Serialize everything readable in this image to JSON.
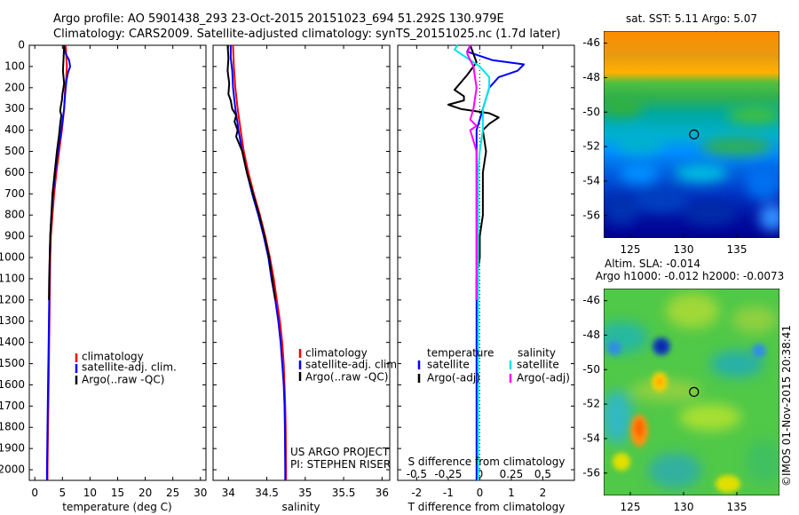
{
  "header": {
    "line1": "Argo profile: AO 5901438_293 23-Oct-2015 20151023_694 51.292S 130.979E",
    "line2": "Climatology: CARS2009. Satellite-adjusted climatology: synTS_20151025.nc (1.7d later)"
  },
  "credits": {
    "project": "US ARGO PROJECT",
    "pi": "PI: STEPHEN RISER",
    "stamp": "©IMOS 01-Nov-2015 20:38:41"
  },
  "colors": {
    "climatology": "#ff0000",
    "satellite": "#0000ff",
    "argo": "#000000",
    "satellite_salinity": "#00e5e5",
    "argo_salinity": "#ff00ff"
  },
  "chart_data": [
    {
      "type": "line",
      "panel": "temperature",
      "xlabel": "temperature (deg C)",
      "xlim": [
        -1,
        31
      ],
      "xticks": [
        "0",
        "5",
        "10",
        "15",
        "20",
        "25",
        "30"
      ],
      "xtick_values": [
        0,
        5,
        10,
        15,
        20,
        25,
        30
      ],
      "ylim": [
        0,
        2050
      ],
      "yticks": [
        "0",
        "100",
        "200",
        "300",
        "400",
        "500",
        "600",
        "700",
        "800",
        "900",
        "1000",
        "1100",
        "1200",
        "1300",
        "1400",
        "1500",
        "1600",
        "1700",
        "1800",
        "1900",
        "2000"
      ],
      "ytick_values": [
        0,
        100,
        200,
        300,
        400,
        500,
        600,
        700,
        800,
        900,
        1000,
        1100,
        1200,
        1300,
        1400,
        1500,
        1600,
        1700,
        1800,
        1900,
        2000
      ],
      "y_reversed": true,
      "legend": [
        "climatology",
        "satellite-adj. clim.",
        "Argo(..raw -QC)"
      ],
      "series": [
        {
          "name": "climatology",
          "color": "#ff0000",
          "points": [
            [
              5.6,
              0
            ],
            [
              5.7,
              50
            ],
            [
              5.8,
              100
            ],
            [
              5.7,
              150
            ],
            [
              5.5,
              200
            ],
            [
              5.3,
              300
            ],
            [
              4.9,
              400
            ],
            [
              4.4,
              500
            ],
            [
              3.9,
              600
            ],
            [
              3.5,
              700
            ],
            [
              3.2,
              800
            ],
            [
              2.9,
              900
            ],
            [
              2.8,
              1000
            ],
            [
              2.7,
              1200
            ],
            [
              2.6,
              1400
            ],
            [
              2.5,
              1600
            ],
            [
              2.4,
              1800
            ],
            [
              2.3,
              2000
            ],
            [
              2.3,
              2050
            ]
          ]
        },
        {
          "name": "satellite-adj. clim.",
          "color": "#0000ff",
          "points": [
            [
              5.3,
              0
            ],
            [
              5.6,
              40
            ],
            [
              6.2,
              70
            ],
            [
              6.4,
              100
            ],
            [
              6.0,
              130
            ],
            [
              5.7,
              170
            ],
            [
              5.5,
              230
            ],
            [
              5.3,
              300
            ],
            [
              4.8,
              400
            ],
            [
              4.2,
              500
            ],
            [
              3.7,
              600
            ],
            [
              3.3,
              700
            ],
            [
              3.0,
              800
            ],
            [
              2.8,
              900
            ],
            [
              2.7,
              1000
            ],
            [
              2.6,
              1200
            ],
            [
              2.5,
              1400
            ],
            [
              2.4,
              1600
            ],
            [
              2.3,
              1800
            ],
            [
              2.2,
              2000
            ],
            [
              2.2,
              2050
            ]
          ]
        },
        {
          "name": "Argo(..raw -QC)",
          "color": "#000000",
          "points": [
            [
              5.3,
              0
            ],
            [
              5.2,
              60
            ],
            [
              5.1,
              120
            ],
            [
              5.3,
              180
            ],
            [
              5.0,
              230
            ],
            [
              4.9,
              260
            ],
            [
              4.7,
              290
            ],
            [
              4.6,
              310
            ],
            [
              4.8,
              330
            ],
            [
              4.6,
              370
            ],
            [
              4.4,
              420
            ],
            [
              4.0,
              500
            ],
            [
              3.6,
              600
            ],
            [
              3.2,
              700
            ],
            [
              3.0,
              800
            ],
            [
              2.8,
              900
            ],
            [
              2.7,
              1000
            ],
            [
              2.6,
              1100
            ],
            [
              2.55,
              1200
            ]
          ]
        }
      ]
    },
    {
      "type": "line",
      "panel": "salinity",
      "xlabel": "salinity",
      "xlim": [
        33.8,
        36.1
      ],
      "xticks": [
        "34",
        "34.5",
        "35",
        "35.5",
        "36"
      ],
      "xtick_values": [
        34,
        34.5,
        35,
        35.5,
        36
      ],
      "ylim": [
        0,
        2050
      ],
      "y_reversed": true,
      "legend": [
        "climatology",
        "satellite-adj. clim.",
        "Argo(..raw -QC)"
      ],
      "series": [
        {
          "name": "climatology",
          "color": "#ff0000",
          "points": [
            [
              34.06,
              0
            ],
            [
              34.07,
              100
            ],
            [
              34.09,
              200
            ],
            [
              34.12,
              300
            ],
            [
              34.16,
              400
            ],
            [
              34.2,
              500
            ],
            [
              34.26,
              600
            ],
            [
              34.33,
              700
            ],
            [
              34.41,
              800
            ],
            [
              34.48,
              900
            ],
            [
              34.54,
              1000
            ],
            [
              34.59,
              1100
            ],
            [
              34.63,
              1200
            ],
            [
              34.67,
              1300
            ],
            [
              34.7,
              1400
            ],
            [
              34.72,
              1500
            ],
            [
              34.73,
              1600
            ],
            [
              34.74,
              1700
            ],
            [
              34.745,
              1800
            ],
            [
              34.75,
              2000
            ],
            [
              34.75,
              2050
            ]
          ]
        },
        {
          "name": "satellite-adj. clim.",
          "color": "#0000ff",
          "points": [
            [
              34.03,
              0
            ],
            [
              34.03,
              60
            ],
            [
              34.05,
              120
            ],
            [
              34.06,
              200
            ],
            [
              34.09,
              300
            ],
            [
              34.12,
              370
            ],
            [
              34.13,
              400
            ],
            [
              34.18,
              500
            ],
            [
              34.24,
              600
            ],
            [
              34.31,
              700
            ],
            [
              34.39,
              800
            ],
            [
              34.46,
              900
            ],
            [
              34.52,
              1000
            ],
            [
              34.56,
              1100
            ],
            [
              34.61,
              1200
            ],
            [
              34.65,
              1300
            ],
            [
              34.68,
              1400
            ],
            [
              34.7,
              1500
            ],
            [
              34.72,
              1600
            ],
            [
              34.73,
              1700
            ],
            [
              34.735,
              1800
            ],
            [
              34.74,
              2000
            ],
            [
              34.74,
              2050
            ]
          ]
        },
        {
          "name": "Argo(..raw -QC)",
          "color": "#000000",
          "points": [
            [
              33.99,
              0
            ],
            [
              34.0,
              60
            ],
            [
              33.99,
              120
            ],
            [
              34.01,
              180
            ],
            [
              34.0,
              230
            ],
            [
              34.03,
              260
            ],
            [
              34.05,
              300
            ],
            [
              34.1,
              330
            ],
            [
              34.08,
              360
            ],
            [
              34.12,
              400
            ],
            [
              34.1,
              430
            ],
            [
              34.18,
              500
            ],
            [
              34.24,
              600
            ],
            [
              34.32,
              700
            ],
            [
              34.4,
              800
            ],
            [
              34.47,
              900
            ],
            [
              34.53,
              1000
            ],
            [
              34.57,
              1100
            ],
            [
              34.61,
              1200
            ]
          ]
        }
      ]
    },
    {
      "type": "line",
      "panel": "difference",
      "xlabel": "T difference from climatology",
      "xlabel_top": "S difference from climatology",
      "xlim": [
        -2.6,
        3.0
      ],
      "xticks": [
        "-2",
        "-1",
        "0",
        "1",
        "2"
      ],
      "xtick_values": [
        -2,
        -1,
        0,
        1,
        2
      ],
      "s_xticks": [
        "-0.5",
        "-0.25",
        "0",
        "0.25",
        "0.5"
      ],
      "s_xtick_values": [
        -0.5,
        -0.25,
        0,
        0.25,
        0.5
      ],
      "ylim": [
        0,
        2050
      ],
      "y_reversed": true,
      "legend": {
        "temperature_title": "temperature",
        "salinity_title": "salinity",
        "satellite": "satellite",
        "argo": "Argo(-adj)"
      },
      "series": [
        {
          "name": "temperature satellite",
          "color": "#0000ff",
          "points": [
            [
              -0.3,
              0
            ],
            [
              -0.4,
              30
            ],
            [
              0.4,
              70
            ],
            [
              1.4,
              90
            ],
            [
              1.2,
              120
            ],
            [
              0.6,
              150
            ],
            [
              0.3,
              200
            ],
            [
              0.1,
              300
            ],
            [
              -0.1,
              400
            ],
            [
              -0.1,
              500
            ],
            [
              -0.1,
              600
            ],
            [
              -0.1,
              800
            ],
            [
              -0.1,
              1000
            ],
            [
              -0.1,
              1500
            ],
            [
              -0.1,
              2000
            ],
            [
              -0.1,
              2050
            ]
          ]
        },
        {
          "name": "temperature Argo(-adj)",
          "color": "#000000",
          "points": [
            [
              -0.3,
              0
            ],
            [
              -0.1,
              80
            ],
            [
              -0.4,
              140
            ],
            [
              -0.8,
              210
            ],
            [
              -0.5,
              240
            ],
            [
              -0.5,
              260
            ],
            [
              -1.0,
              280
            ],
            [
              -0.6,
              300
            ],
            [
              0.3,
              320
            ],
            [
              0.6,
              340
            ],
            [
              0.3,
              370
            ],
            [
              0.1,
              400
            ],
            [
              0.2,
              500
            ],
            [
              0.1,
              600
            ],
            [
              0.1,
              700
            ],
            [
              0.1,
              800
            ],
            [
              0.0,
              900
            ],
            [
              0.0,
              1000
            ],
            [
              -0.1,
              1100
            ],
            [
              -0.1,
              1200
            ]
          ]
        },
        {
          "name": "salinity satellite",
          "color": "#00e5e5",
          "points": [
            [
              -0.7,
              0
            ],
            [
              -0.8,
              20
            ],
            [
              -0.5,
              50
            ],
            [
              0.0,
              100
            ],
            [
              0.3,
              150
            ],
            [
              0.3,
              200
            ],
            [
              0.1,
              300
            ],
            [
              0.1,
              400
            ],
            [
              0.0,
              500
            ],
            [
              -0.05,
              600
            ],
            [
              -0.05,
              800
            ],
            [
              -0.05,
              1000
            ],
            [
              -0.05,
              1500
            ],
            [
              -0.05,
              2000
            ],
            [
              -0.05,
              2050
            ]
          ]
        },
        {
          "name": "salinity Argo(-adj)",
          "color": "#ff00ff",
          "points": [
            [
              -0.3,
              0
            ],
            [
              -0.4,
              40
            ],
            [
              -0.2,
              100
            ],
            [
              -0.1,
              200
            ],
            [
              -0.2,
              300
            ],
            [
              -0.3,
              350
            ],
            [
              -0.1,
              380
            ],
            [
              -0.3,
              400
            ],
            [
              -0.2,
              450
            ],
            [
              -0.1,
              500
            ],
            [
              -0.1,
              600
            ],
            [
              -0.1,
              800
            ],
            [
              -0.1,
              1000
            ],
            [
              -0.1,
              1100
            ],
            [
              -0.1,
              1200
            ]
          ]
        }
      ]
    },
    {
      "type": "heatmap",
      "panel": "sst-map",
      "title": "sat. SST: 5.11  Argo: 5.07",
      "xlim": [
        122.5,
        139
      ],
      "ylim": [
        -57.3,
        -45.3
      ],
      "xticks": [
        "125",
        "130",
        "135"
      ],
      "xtick_values": [
        125,
        130,
        135
      ],
      "yticks": [
        "-46",
        "-48",
        "-50",
        "-52",
        "-54",
        "-56"
      ],
      "ytick_values": [
        -46,
        -48,
        -50,
        -52,
        -54,
        -56
      ],
      "marker": [
        130.979,
        -51.292
      ]
    },
    {
      "type": "heatmap",
      "panel": "sla-map",
      "title": "Altim. SLA: -0.014",
      "subtitle": "Argo h1000: -0.012  h2000: -0.0073",
      "xlim": [
        122.5,
        139
      ],
      "ylim": [
        -57.3,
        -45.3
      ],
      "xticks": [
        "125",
        "130",
        "135"
      ],
      "xtick_values": [
        125,
        130,
        135
      ],
      "yticks": [
        "-46",
        "-48",
        "-50",
        "-52",
        "-54",
        "-56"
      ],
      "ytick_values": [
        -46,
        -48,
        -50,
        -52,
        -54,
        -56
      ],
      "marker": [
        130.979,
        -51.292
      ]
    }
  ]
}
